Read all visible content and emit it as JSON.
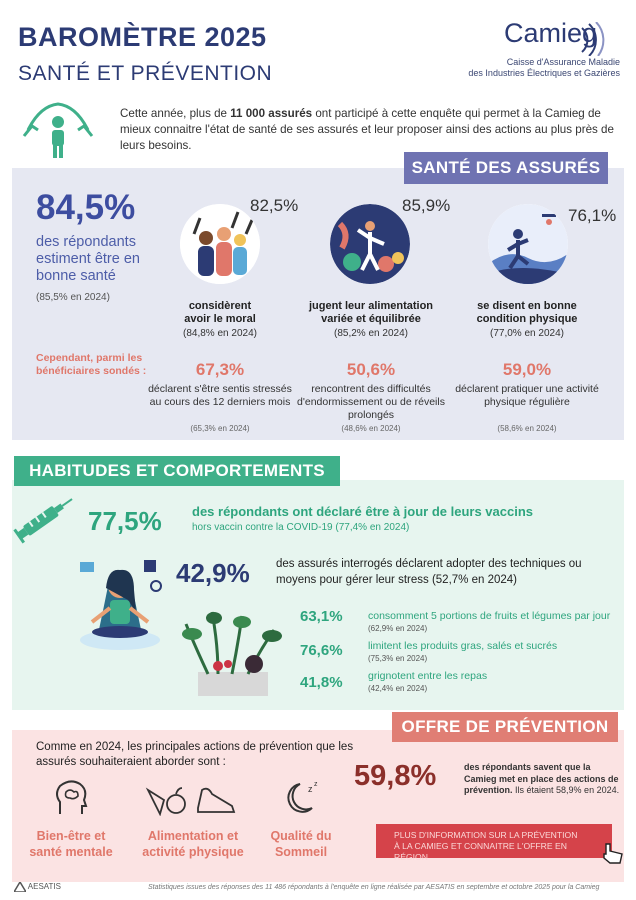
{
  "header": {
    "title": "BAROMÈTRE 2025",
    "subtitle": "SANTÉ ET PRÉVENTION",
    "logo_name": "Camieg",
    "logo_line1": "Caisse d'Assurance Maladie",
    "logo_line2": "des Industries Électriques et Gazières"
  },
  "intro": {
    "part1": "Cette année, plus de ",
    "highlight": "11 000 assurés",
    "part2": " ont participé à cette enquête qui permet à la Camieg de mieux connaitre l'état de santé de ses assurés et leur proposer ainsi des actions au plus près de leurs besoins."
  },
  "sante": {
    "heading": "SANTÉ DES ASSURÉS",
    "main_pct": "84,5%",
    "main_label": "des répondants estiment être en bonne santé",
    "main_prev": "(85,5% en 2024)",
    "stats": [
      {
        "pct": "82,5%",
        "title_line1": "considèrent",
        "title_line2": "avoir le moral",
        "prev": "(84,8% en 2024)"
      },
      {
        "pct": "85,9%",
        "title_line1": "jugent leur alimentation",
        "title_line2": "variée et équilibrée",
        "prev": "(85,2% en 2024)"
      },
      {
        "pct": "76,1%",
        "title_line1": "se disent en bonne",
        "title_line2": "condition physique",
        "prev": "(77,0% en 2024)"
      }
    ],
    "cependant": "Cependant, parmi les bénéficiaires sondés :",
    "secondary": [
      {
        "pct": "67,3%",
        "desc": "déclarent s'être sentis stressés au cours des 12 derniers mois",
        "prev": "(65,3% en 2024)"
      },
      {
        "pct": "50,6%",
        "desc": "rencontrent des difficultés d'endormissement ou de réveils prolongés",
        "prev": "(48,6% en 2024)"
      },
      {
        "pct": "59,0%",
        "desc": "déclarent pratiquer une activité physique régulière",
        "prev": "(58,6% en 2024)"
      }
    ]
  },
  "habitudes": {
    "heading": "HABITUDES ET COMPORTEMENTS",
    "vaccin_pct": "77,5%",
    "vaccin_text": "des répondants ont déclaré être à jour de leurs vaccins",
    "vaccin_sub": "hors vaccin contre la COVID-19 (77,4% en 2024)",
    "stress_pct": "42,9%",
    "stress_text": "des assurés interrogés déclarent adopter des techniques ou moyens pour gérer leur stress (52,7% en 2024)",
    "alimentation": [
      {
        "pct": "63,1%",
        "text": "consomment 5 portions de fruits et légumes par jour",
        "prev": "(62,9% en 2024)"
      },
      {
        "pct": "76,6%",
        "text": "limitent les produits gras, salés et sucrés",
        "prev": "(75,3% en 2024)"
      },
      {
        "pct": "41,8%",
        "text": "grignotent entre les repas",
        "prev": "(42,4% en 2024)"
      }
    ]
  },
  "prevention": {
    "heading": "OFFRE DE PRÉVENTION",
    "actions_intro": "Comme en 2024, les principales actions de prévention que les assurés souhaiteraient aborder sont :",
    "actions": [
      {
        "line1": "Bien-être et",
        "line2": "santé mentale"
      },
      {
        "line1": "Alimentation et",
        "line2": "activité physique"
      },
      {
        "line1": "Qualité du",
        "line2": "Sommeil"
      }
    ],
    "pct": "59,8%",
    "text_bold": "des répondants savent que la Camieg met en place des actions de prévention.",
    "text_rest": " Ils étaient 58,9% en 2024.",
    "cta_line1": "PLUS D'INFORMATION SUR LA PRÉVENTION",
    "cta_line2": "À LA CAMIEG ET CONNAITRE L'OFFRE EN RÉGION"
  },
  "footer": {
    "brand": "AESATIS",
    "note": "Statistiques issues des réponses des 11 486 répondants à l'enquête en ligne réalisée par AESATIS en septembre et octobre 2025 pour la Camieg"
  },
  "colors": {
    "navy": "#2c3b74",
    "lavender": "#6f73b2",
    "green": "#3fb08a",
    "coral": "#e0776a",
    "dark_red": "#8b2f2a",
    "cta_red": "#d5434a"
  }
}
